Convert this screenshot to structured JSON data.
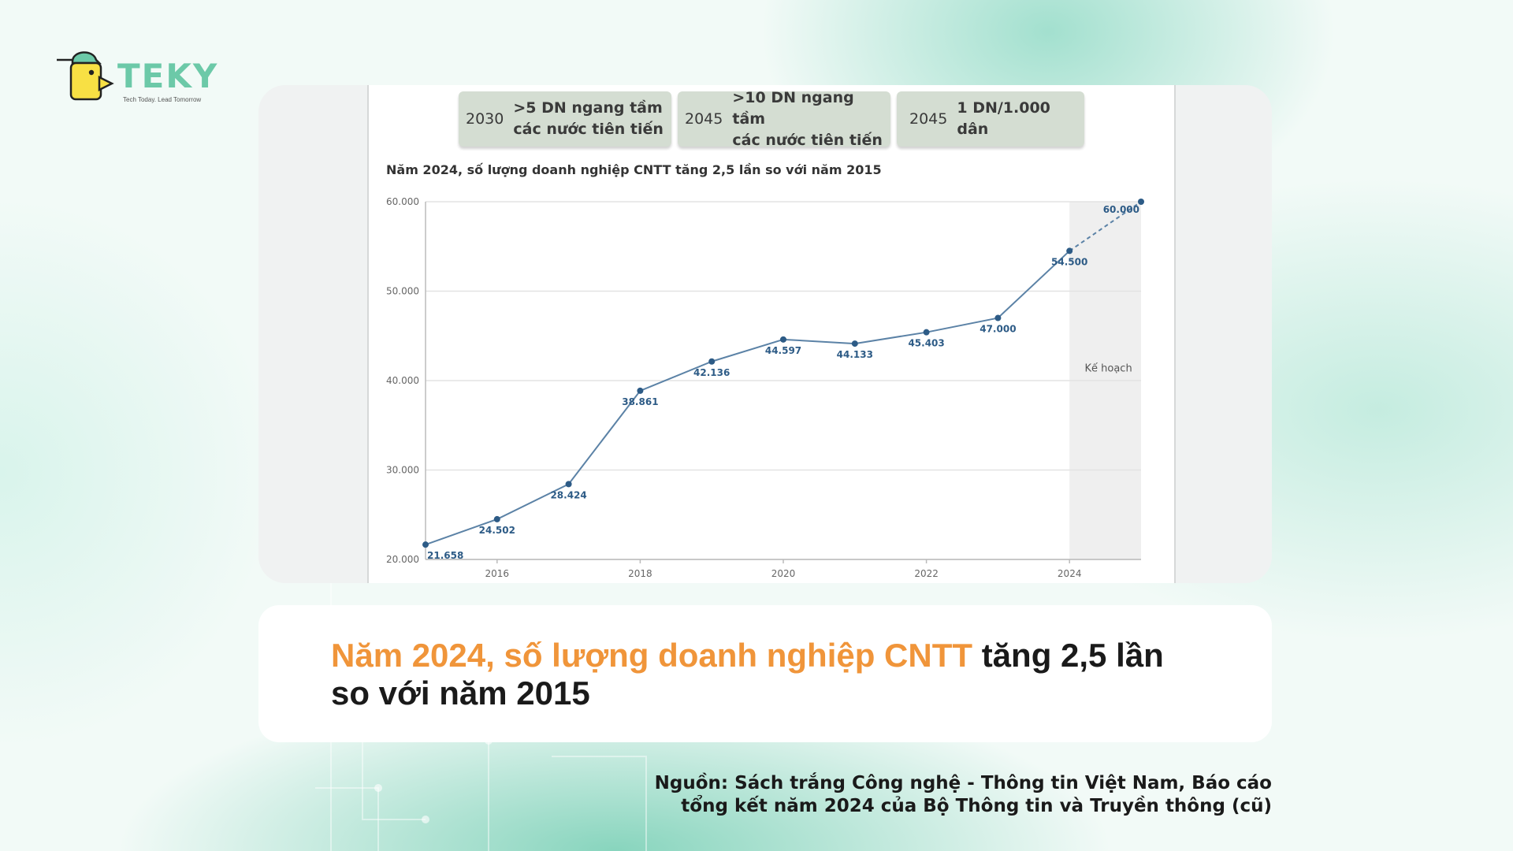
{
  "brand": {
    "name": "TEKY",
    "tagline": "Tech Today. Lead Tomorrow",
    "colors": {
      "mint": "#6cc9a8",
      "yellow": "#f8e044",
      "orange": "#f0953a"
    }
  },
  "targets": [
    {
      "year": "2030",
      "text": ">5 DN ngang tầm\ncác nước tiên tiến"
    },
    {
      "year": "2045",
      "text": ">10 DN ngang tầm\ncác nước tiên tiến"
    },
    {
      "year": "2045",
      "text": "1 DN/1.000 dân"
    }
  ],
  "chart_data": {
    "type": "line",
    "title": "Năm 2024, số lượng doanh nghiệp CNTT tăng 2,5 lần so với năm 2015",
    "x": [
      2015,
      2016,
      2017,
      2018,
      2019,
      2020,
      2021,
      2022,
      2023,
      2024,
      2025
    ],
    "values": [
      21658,
      24502,
      28424,
      38861,
      42136,
      44597,
      44133,
      45403,
      47000,
      54500,
      60000
    ],
    "data_labels": [
      "21.658",
      "24.502",
      "28.424",
      "38.861",
      "42.136",
      "44.597",
      "44.133",
      "45.403",
      "47.000",
      "54.500",
      "60.000"
    ],
    "x_ticks": [
      "2016",
      "2018",
      "2020",
      "2022",
      "2024"
    ],
    "y_ticks": [
      "20.000",
      "30.000",
      "40.000",
      "50.000",
      "60.000"
    ],
    "ylim": [
      20000,
      60000
    ],
    "xlim": [
      2015,
      2025
    ],
    "grid": true,
    "planned_from": 2024,
    "planned_label": "Kế hoạch",
    "dashed_segment": [
      2024,
      2025
    ],
    "line_color": "#5b82a6",
    "label_color": "#2d5b86"
  },
  "headline": {
    "accent": "Năm 2024, số lượng doanh nghiệp CNTT",
    "rest": " tăng 2,5 lần so với năm 2015"
  },
  "source": {
    "line1": "Nguồn:  Sách trắng Công nghệ - Thông tin Việt Nam, Báo cáo",
    "line2": "tổng kết năm 2024 của Bộ Thông tin và Truyền thông (cũ)"
  }
}
